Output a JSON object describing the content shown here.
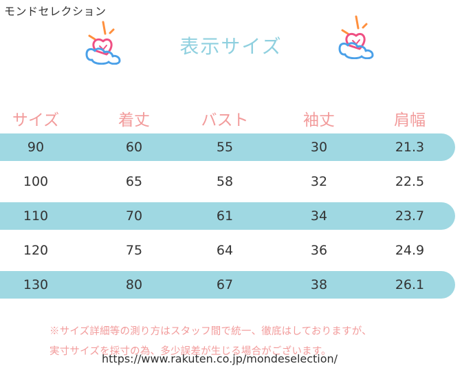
{
  "brand": "モンドセレクション",
  "title": "表示サイズ",
  "headers": [
    "サイズ",
    "着丈",
    "バスト",
    "袖丈",
    "肩幅"
  ],
  "rows": [
    [
      "90",
      "60",
      "55",
      "30",
      "21.3"
    ],
    [
      "100",
      "65",
      "58",
      "32",
      "22.5"
    ],
    [
      "110",
      "70",
      "61",
      "34",
      "23.7"
    ],
    [
      "120",
      "75",
      "64",
      "36",
      "24.9"
    ],
    [
      "130",
      "80",
      "67",
      "38",
      "26.1"
    ]
  ],
  "notes": [
    "※サイズ詳細等の測り方はスタッフ間で統一、徹底はしておりますが、",
    "実寸サイズを採寸の為、多少誤差が生じる場合がございます。"
  ],
  "url": "https://www.rakuten.co.jp/mondeselection/",
  "colors": {
    "band": "#9fd8e2",
    "title": "#8fd0df",
    "header_text": "#f29b9b",
    "note_text": "#f29b9b",
    "body_text": "#333333"
  },
  "icons": [
    "heart-sparkle-icon",
    "heart-sparkle-icon"
  ]
}
